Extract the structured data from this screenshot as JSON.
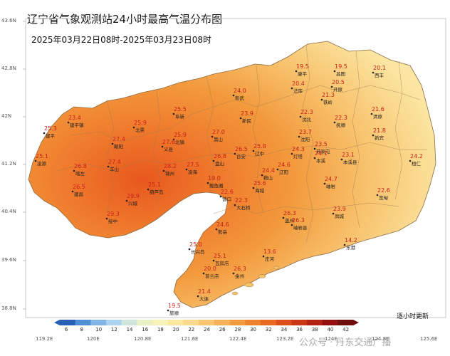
{
  "title": "辽宁省气象观测站24小时最高气温分布图",
  "subtitle": "2025年03月22日08时-2025年03月23日08时",
  "update_note": "逐小时更新",
  "watermark": "公众号 · 丹东交通广播",
  "lat_labels": [
    "43.6N",
    "42.8N",
    "42N",
    "41.2N",
    "40.4N",
    "39.6N",
    "38.8N"
  ],
  "lon_labels": [
    "119.2E",
    "120E",
    "120.8E",
    "121.6E",
    "122.4E",
    "123.2E",
    "124E",
    "124.8E",
    "125.6E"
  ],
  "colorbar": {
    "ticks": [
      "6",
      "8",
      "10",
      "12",
      "14",
      "16",
      "18",
      "20",
      "22",
      "24",
      "26",
      "28",
      "30",
      "32",
      "34",
      "36",
      "38",
      "40",
      "42"
    ],
    "colors": [
      "#2a5fb8",
      "#4f8fd6",
      "#7fb6e6",
      "#a9d3ef",
      "#cfe6dd",
      "#e9f1c6",
      "#f7f2b6",
      "#fbe8a0",
      "#fbd98a",
      "#f9c66f",
      "#f6b055",
      "#f39a3d",
      "#ef832b",
      "#e96a1f",
      "#dd4f17",
      "#c93714",
      "#b32212",
      "#931010",
      "#6e0b0b"
    ]
  },
  "stations": [
    {
      "v": "19.5",
      "name": "康平"
    },
    {
      "v": "19.5",
      "name": "昌图"
    },
    {
      "v": "20.1",
      "name": "西丰"
    },
    {
      "v": "20.4",
      "name": "法库"
    },
    {
      "v": "20.5",
      "name": "开原"
    },
    {
      "v": "21.3",
      "name": "铁岭"
    },
    {
      "v": "24.0",
      "name": "彰武"
    },
    {
      "v": "25.5",
      "name": "阜新"
    },
    {
      "v": "23.9",
      "name": "新民"
    },
    {
      "v": "22.3",
      "name": "沈北"
    },
    {
      "v": "22.3",
      "name": "抚顺"
    },
    {
      "v": "21.6",
      "name": "清原"
    },
    {
      "v": "23.4",
      "name": "建平镇"
    },
    {
      "v": "25.9",
      "name": "北票"
    },
    {
      "v": "21.8",
      "name": "新宾"
    },
    {
      "v": "25.3",
      "name": "建平"
    },
    {
      "v": "27.4",
      "name": "朝阳"
    },
    {
      "v": "25.9",
      "name": "北镇"
    },
    {
      "v": "27.0",
      "name": "黑山"
    },
    {
      "v": "26.5",
      "name": "台安"
    },
    {
      "v": "25.8",
      "name": "辽中"
    },
    {
      "v": "23.7",
      "name": "沈阳"
    },
    {
      "v": "23.5",
      "name": "苏家屯"
    },
    {
      "v": "27.6",
      "name": "义县"
    },
    {
      "v": "24.3",
      "name": "灯塔"
    },
    {
      "v": "24.1",
      "name": "本溪"
    },
    {
      "v": "23.1",
      "name": "本溪县"
    },
    {
      "v": "24.2",
      "name": "桓仁"
    },
    {
      "v": "25.1",
      "name": "凌源"
    },
    {
      "v": "26.8",
      "name": "喀左"
    },
    {
      "v": "27.4",
      "name": "羊山"
    },
    {
      "v": "28.2",
      "name": "锦州"
    },
    {
      "v": "27.5",
      "name": "凌海"
    },
    {
      "v": "26.8",
      "name": "盘山"
    },
    {
      "v": "24.6",
      "name": "辽阳"
    },
    {
      "v": "24.4",
      "name": "鞍山"
    },
    {
      "v": "24.7",
      "name": "岫岩"
    },
    {
      "v": "26.5",
      "name": "建昌"
    },
    {
      "v": "29.9",
      "name": "兴城"
    },
    {
      "v": "25.1",
      "name": "葫芦岛"
    },
    {
      "v": "19.0",
      "name": "鲅鱼圈"
    },
    {
      "v": "22.6",
      "name": "营口"
    },
    {
      "v": "25.6",
      "name": "海城"
    },
    {
      "v": "22.6",
      "name": "宽甸"
    },
    {
      "v": "29.3",
      "name": "绥中"
    },
    {
      "v": "22.3",
      "name": "大石桥"
    },
    {
      "v": "23.9",
      "name": "凤城"
    },
    {
      "v": "24.6",
      "name": "熊岳"
    },
    {
      "v": "26.3",
      "name": "盖州"
    },
    {
      "v": "26.3",
      "name": "岫岩县"
    },
    {
      "v": "14.2",
      "name": "东港"
    },
    {
      "v": "13.6",
      "name": "庄河"
    },
    {
      "v": "25.0",
      "name": "长兴岛"
    },
    {
      "v": "25.1",
      "name": "瓦房店"
    },
    {
      "v": "20.0",
      "name": "普兰店"
    },
    {
      "v": "26.3",
      "name": "金州"
    },
    {
      "v": "21.4",
      "name": "大连"
    },
    {
      "v": "19.5",
      "name": "旅顺"
    }
  ]
}
